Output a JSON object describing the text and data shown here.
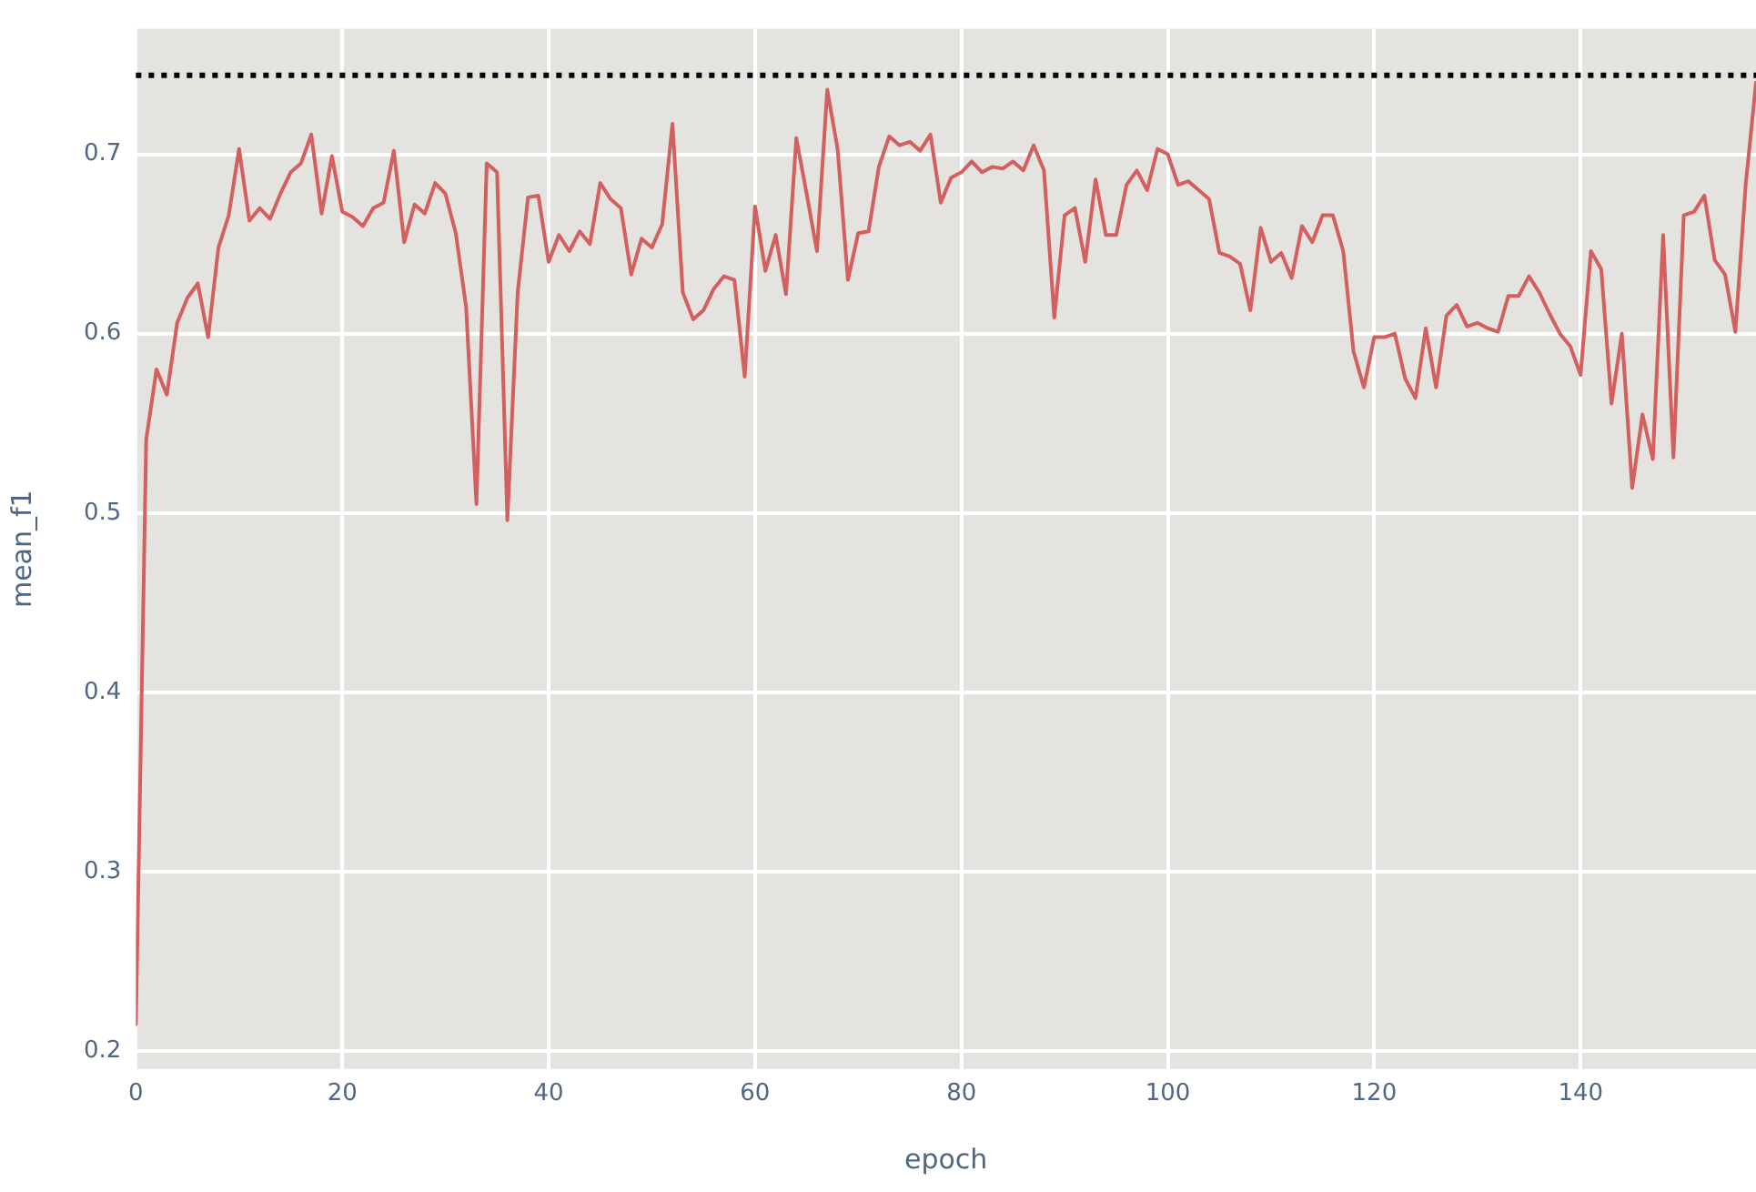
{
  "chart_data": {
    "type": "line",
    "xlabel": "epoch",
    "ylabel": "mean_f1",
    "x": [
      0,
      1,
      2,
      3,
      4,
      5,
      6,
      7,
      8,
      9,
      10,
      11,
      12,
      13,
      14,
      15,
      16,
      17,
      18,
      19,
      20,
      21,
      22,
      23,
      24,
      25,
      26,
      27,
      28,
      29,
      30,
      31,
      32,
      33,
      34,
      35,
      36,
      37,
      38,
      39,
      40,
      41,
      42,
      43,
      44,
      45,
      46,
      47,
      48,
      49,
      50,
      51,
      52,
      53,
      54,
      55,
      56,
      57,
      58,
      59,
      60,
      61,
      62,
      63,
      64,
      65,
      66,
      67,
      68,
      69,
      70,
      71,
      72,
      73,
      74,
      75,
      76,
      77,
      78,
      79,
      80,
      81,
      82,
      83,
      84,
      85,
      86,
      87,
      88,
      89,
      90,
      91,
      92,
      93,
      94,
      95,
      96,
      97,
      98,
      99,
      100,
      101,
      102,
      103,
      104,
      105,
      106,
      107,
      108,
      109,
      110,
      111,
      112,
      113,
      114,
      115,
      116,
      117,
      118,
      119,
      120,
      121,
      122,
      123,
      124,
      125,
      126,
      127,
      128,
      129,
      130,
      131,
      132,
      133,
      134,
      135,
      136,
      137,
      138,
      139,
      140,
      141,
      142,
      143,
      144,
      145,
      146,
      147,
      148,
      149,
      150,
      151,
      152,
      153,
      154,
      155,
      156,
      157
    ],
    "series": [
      {
        "color": "#d35f5f",
        "values": [
          0.215,
          0.541,
          0.58,
          0.566,
          0.606,
          0.62,
          0.628,
          0.598,
          0.648,
          0.666,
          0.703,
          0.663,
          0.67,
          0.664,
          0.678,
          0.69,
          0.695,
          0.711,
          0.667,
          0.699,
          0.668,
          0.665,
          0.66,
          0.67,
          0.673,
          0.702,
          0.651,
          0.672,
          0.667,
          0.684,
          0.678,
          0.656,
          0.615,
          0.505,
          0.695,
          0.69,
          0.496,
          0.623,
          0.676,
          0.677,
          0.64,
          0.655,
          0.646,
          0.657,
          0.65,
          0.684,
          0.675,
          0.67,
          0.633,
          0.653,
          0.648,
          0.661,
          0.717,
          0.623,
          0.608,
          0.613,
          0.625,
          0.632,
          0.63,
          0.576,
          0.671,
          0.635,
          0.655,
          0.622,
          0.709,
          0.678,
          0.646,
          0.736,
          0.703,
          0.63,
          0.656,
          0.657,
          0.693,
          0.71,
          0.705,
          0.707,
          0.702,
          0.711,
          0.673,
          0.687,
          0.69,
          0.696,
          0.69,
          0.693,
          0.692,
          0.696,
          0.691,
          0.705,
          0.691,
          0.609,
          0.666,
          0.67,
          0.64,
          0.686,
          0.655,
          0.655,
          0.683,
          0.691,
          0.68,
          0.703,
          0.7,
          0.683,
          0.685,
          0.68,
          0.675,
          0.645,
          0.643,
          0.639,
          0.613,
          0.659,
          0.64,
          0.645,
          0.631,
          0.66,
          0.651,
          0.666,
          0.666,
          0.646,
          0.59,
          0.57,
          0.598,
          0.598,
          0.6,
          0.575,
          0.564,
          0.603,
          0.57,
          0.61,
          0.616,
          0.604,
          0.606,
          0.603,
          0.601,
          0.621,
          0.621,
          0.632,
          0.623,
          0.611,
          0.6,
          0.593,
          0.577,
          0.646,
          0.636,
          0.561,
          0.6,
          0.514,
          0.555,
          0.53,
          0.655,
          0.531,
          0.666,
          0.668,
          0.677,
          0.641,
          0.633,
          0.601,
          0.683,
          0.74
        ]
      }
    ],
    "xlim": [
      0,
      157
    ],
    "xticks": [
      0,
      20,
      40,
      60,
      80,
      100,
      120,
      140
    ],
    "ylim": [
      0.19,
      0.77
    ],
    "yticks": [
      0.2,
      0.3,
      0.4,
      0.5,
      0.6,
      0.7
    ],
    "grid": true,
    "marker": "none",
    "line_style": "solid",
    "ref_lines": [
      {
        "axis": "y",
        "value": 0.744,
        "color": "#000000",
        "line_style": "dotted"
      }
    ]
  }
}
